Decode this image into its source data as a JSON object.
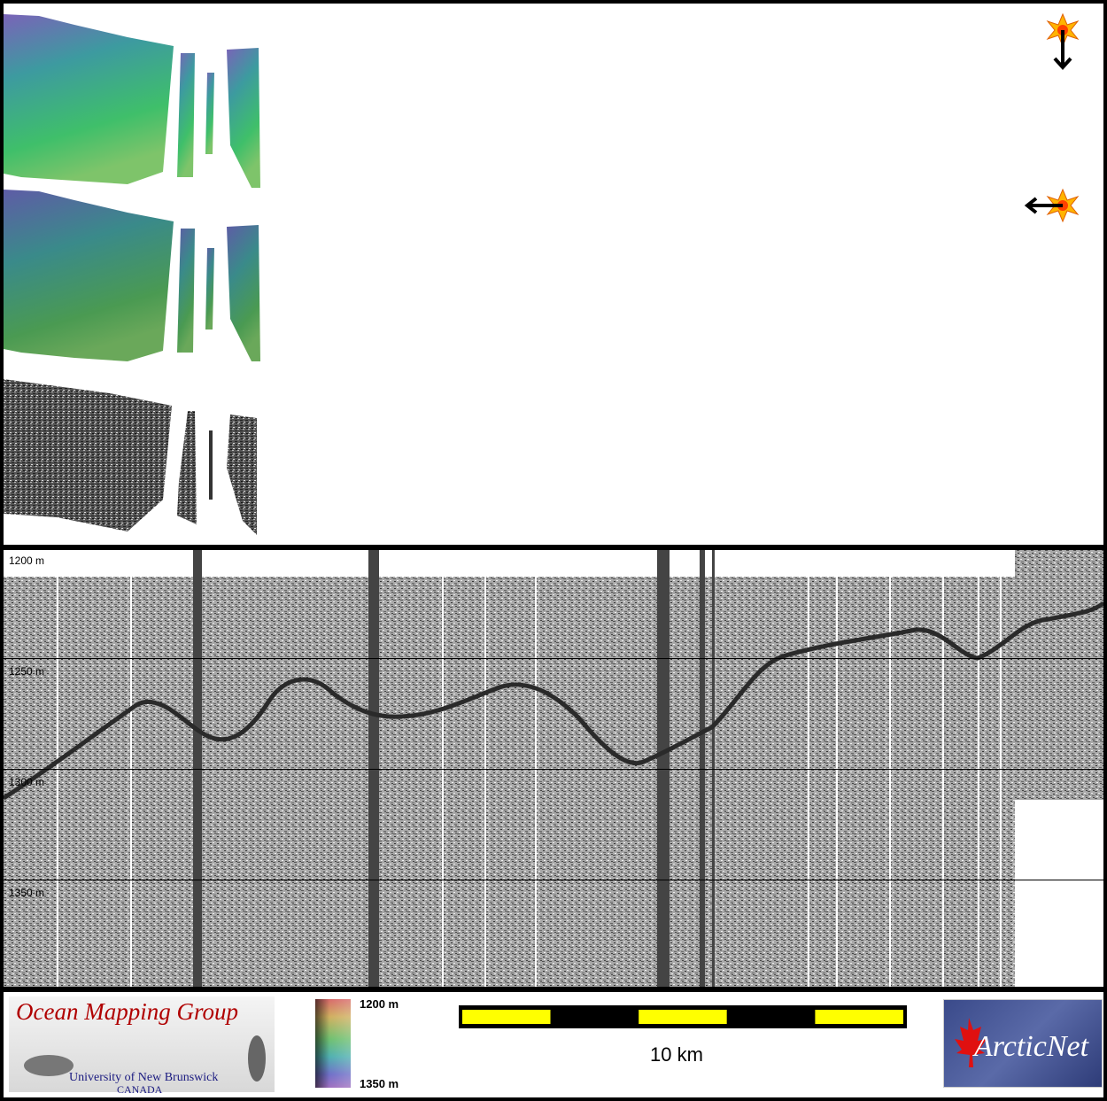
{
  "profile": {
    "depth_labels": [
      "1200 m",
      "1250 m",
      "1300 m",
      "1350 m"
    ]
  },
  "footer": {
    "logo_left": {
      "title": "Ocean Mapping Group",
      "line1": "University of New Brunswick",
      "line2": "CANADA"
    },
    "colorbar": {
      "top_label": "1200 m",
      "bottom_label": "1350 m"
    },
    "scalebar": {
      "label": "10 km",
      "segment_colors": [
        "#ffff00",
        "#000000",
        "#ffff00",
        "#000000",
        "#ffff00"
      ]
    },
    "logo_right": {
      "text": "ArcticNet"
    }
  },
  "icons": {
    "sun_direction_1": "sun-arrow-down-icon",
    "sun_direction_2": "sun-arrow-left-icon"
  }
}
